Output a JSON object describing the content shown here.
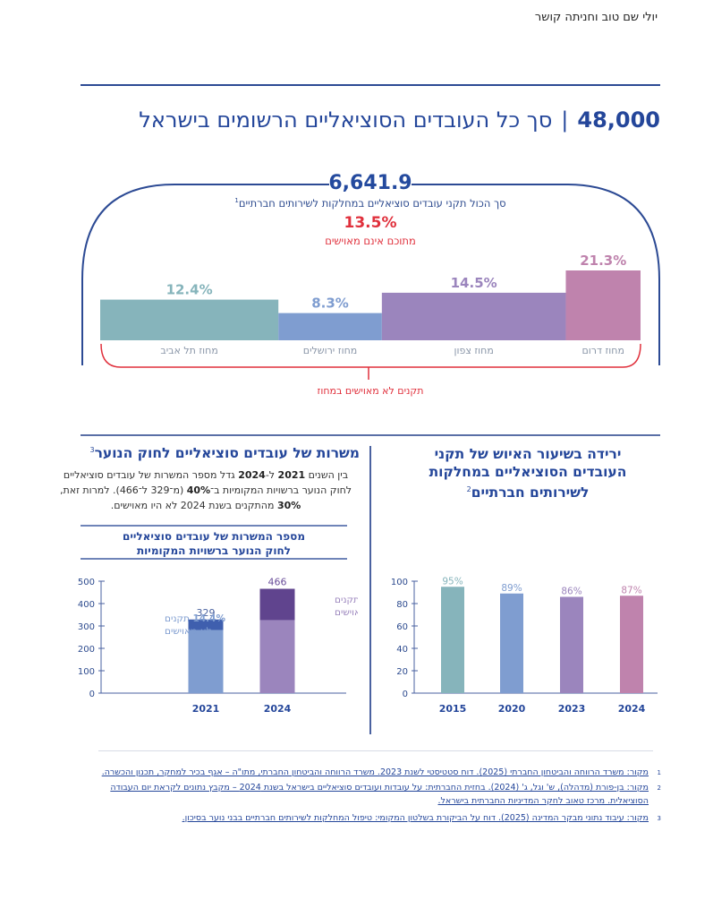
{
  "header": {
    "author": "יולי שם טוב וחניתה קושר",
    "headline_number": "48,000",
    "headline_separator": "|",
    "headline_text": "סך כל העובדים הסוציאליים הרשומים בישראל"
  },
  "summary": {
    "total_positions": "6,641.9",
    "total_positions_label": "סך הכול תקני עובדים סוציאליים במחלקות לשירותים חברתיים",
    "total_positions_footnote": "1",
    "unstaffed_percent": "13.5%",
    "unstaffed_label": "מתוכם אינם מאוישים",
    "brace_label": "תקנים לא מאוישים במחוז"
  },
  "colors": {
    "brand_blue": "#24469a",
    "accent_red": "#e0303c",
    "teal": "#86b4bb",
    "blue": "#7f9dd0",
    "purple": "#9b85bd",
    "pink": "#bf83ad",
    "dark_blue": "#3f5fae",
    "dark_purple": "#60448e"
  },
  "chart_data": [
    {
      "id": "regions",
      "type": "bar",
      "title": "תקנים לא מאוישים במחוז",
      "categories": [
        "מחוז תל אביב",
        "מחוז ירושלים",
        "מחוז צפון",
        "מחוז דרום"
      ],
      "values": [
        12.4,
        8.3,
        14.5,
        21.3
      ],
      "value_labels": [
        "12.4%",
        "8.3%",
        "14.5%",
        "21.3%"
      ],
      "unit": "%",
      "category_share": [
        0.31,
        0.18,
        0.32,
        0.13
      ],
      "colors": [
        "#86b4bb",
        "#7f9dd0",
        "#9b85bd",
        "#bf83ad"
      ],
      "xlabel": "",
      "ylabel": "",
      "grid": false
    },
    {
      "id": "youth_law",
      "type": "bar",
      "stacked": true,
      "title": "מספר המשרות של עובדים סוציאליים לחוק הנוער ברשויות המקומיות",
      "categories": [
        "2021",
        "2024"
      ],
      "totals": [
        329,
        466
      ],
      "total_labels": [
        "329",
        "466"
      ],
      "series": [
        {
          "name": "מאוישים",
          "values": [
            281.6,
            326.2
          ],
          "colors": [
            "#7f9dd0",
            "#9b85bd"
          ]
        },
        {
          "name": "לא מאוישים",
          "values": [
            47.4,
            139.8
          ],
          "colors": [
            "#3f5fae",
            "#60448e"
          ]
        }
      ],
      "annotations": [
        {
          "category": "2021",
          "line1_pct": "14.4%",
          "line1_text": "תקנים",
          "line2": "לא מאוישים"
        },
        {
          "category": "2024",
          "line1_pct": "30%",
          "line1_text": "תקנים",
          "line2": "לא מאוישים"
        }
      ],
      "yticks": [
        0,
        100,
        200,
        300,
        400,
        500
      ],
      "ylim": [
        0,
        500
      ],
      "xlabel": "",
      "ylabel": "",
      "grid": false
    },
    {
      "id": "staffing_rate",
      "type": "bar",
      "title": "ירידה בשיעור האיוש של תקני העובדים הסוציאליים במחלקות לשירותים חברתיים",
      "categories": [
        "2015",
        "2020",
        "2023",
        "2024"
      ],
      "values": [
        95,
        89,
        86,
        87
      ],
      "value_labels": [
        "95%",
        "89%",
        "86%",
        "87%"
      ],
      "colors": [
        "#86b4bb",
        "#7f9dd0",
        "#9b85bd",
        "#bf83ad"
      ],
      "yticks": [
        0,
        20,
        40,
        60,
        80,
        100
      ],
      "ylim": [
        0,
        100
      ],
      "xlabel": "",
      "ylabel": "",
      "grid": false
    }
  ],
  "left_section": {
    "title": "משרות של עובדים סוציאליים לחוק הנוער",
    "title_footnote": "3",
    "body_parts": [
      {
        "t": "בין השנים ",
        "b": false
      },
      {
        "t": "2021",
        "b": true
      },
      {
        "t": " ל-",
        "b": false
      },
      {
        "t": "2024",
        "b": true
      },
      {
        "t": " גדל מספר המשרות של עובדים סוציאליים לחוק הנוער ברשויות המקומיות ב־",
        "b": false
      },
      {
        "t": "40%",
        "b": true
      },
      {
        "t": " (מ־329 ל־466). למרות זאת, ",
        "b": false
      },
      {
        "t": "30%",
        "b": true
      },
      {
        "t": " מהתקנים בשנת 2024 לא היו מאוישים.",
        "b": false
      }
    ],
    "chart_title_line1": "מספר המשרות של עובדים סוציאליים",
    "chart_title_line2": "לחוק הנוער ברשויות המקומיות"
  },
  "right_section": {
    "title_line1": "ירידה בשיעור האיוש של תקני",
    "title_line2": "העובדים הסוציאליים במחלקות",
    "title_line3": "לשירותים חברתיים",
    "title_footnote": "2"
  },
  "footnotes": [
    {
      "num": "1",
      "text": "מקור: משרד הרווחה והביטחון החברתי (2025). דוח סטטיסטי לשנת 2023. משרד הרווחה והביטחון החברתי, מתו\"ה – אגף בכיר למחקר, תכנון והכשרה."
    },
    {
      "num": "2",
      "text": "מקור: בן-פורת (מדהלה), ש' וגל, ג' (2024). בחזית החברתית: על עובדות ועובדים סוציאליים בישראל בשנת 2024 – מקבץ נתונים לקראת יום העבודה הסוציאלית. מרכז טאוב לחקר המדיניות החברתית בישראל."
    },
    {
      "num": "3",
      "text": "מקור: עיבוד נתוני מבקר המדינה (2025). דוח על הביקורת בשלטון המקומי: טיפול המחלקות לשירותים חברתיים בבני נוער בסיכון."
    }
  ]
}
